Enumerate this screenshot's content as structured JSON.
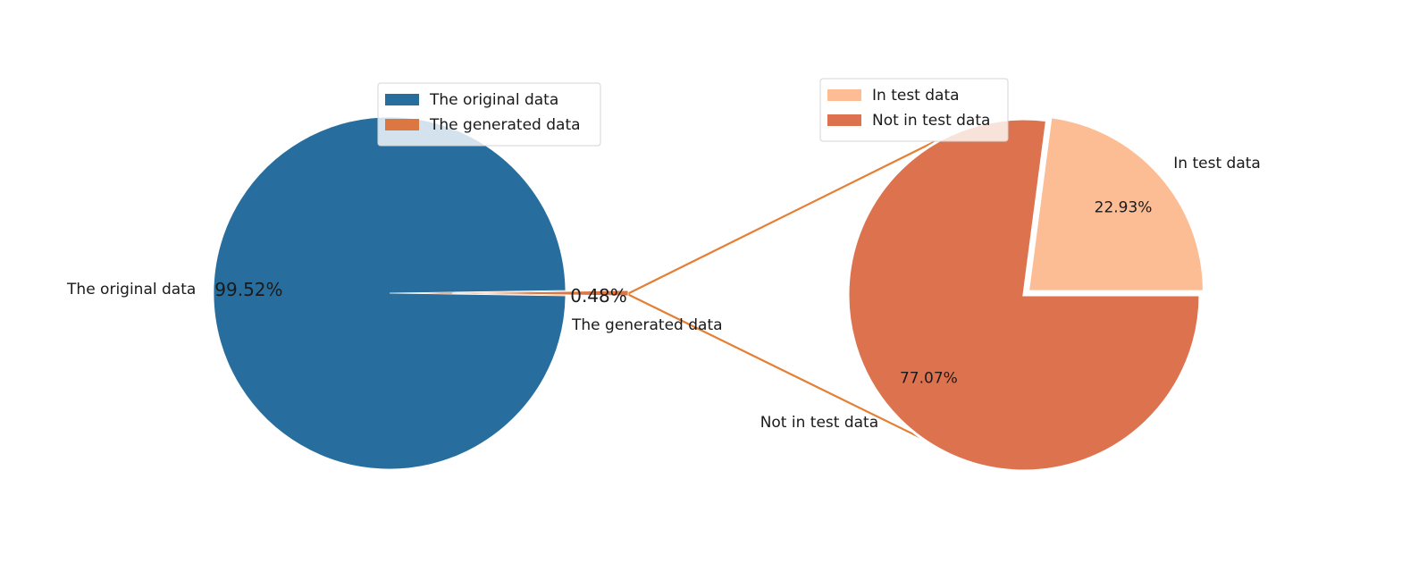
{
  "chart_data": [
    {
      "type": "pie",
      "slices": [
        {
          "label": "The original data",
          "value": 99.52,
          "pct_label": "99.52%",
          "color": "#276e9f"
        },
        {
          "label": "The generated data",
          "value": 0.48,
          "pct_label": "0.48%",
          "color": "#dd7742"
        }
      ],
      "legend": {
        "placement": "top-right",
        "entries": [
          {
            "label": "The original data",
            "color": "#276e9f"
          },
          {
            "label": "The generated data",
            "color": "#dd7742"
          }
        ]
      }
    },
    {
      "type": "pie",
      "slices": [
        {
          "label": "In test data",
          "value": 22.93,
          "pct_label": "22.93%",
          "color": "#fdbd94",
          "exploded": true
        },
        {
          "label": "Not in test data",
          "value": 77.07,
          "pct_label": "77.07%",
          "color": "#dd734e"
        }
      ],
      "legend": {
        "placement": "top-left",
        "entries": [
          {
            "label": "In test data",
            "color": "#fdbd94"
          },
          {
            "label": "Not in test data",
            "color": "#dd734e"
          }
        ]
      }
    }
  ],
  "connector_color": "#e57f33"
}
